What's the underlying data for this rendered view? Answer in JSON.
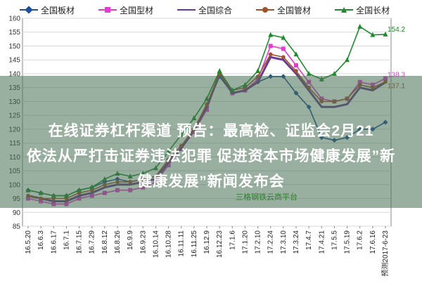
{
  "legend": [
    {
      "name": "全国板材",
      "color": "#1f4e9a",
      "marker": "diamond"
    },
    {
      "name": "全国型材",
      "color": "#e43cd0",
      "marker": "square"
    },
    {
      "name": "全国综合",
      "color": "#6a3b8f",
      "marker": "none"
    },
    {
      "name": "全国管材",
      "color": "#a0522d",
      "marker": "circle"
    },
    {
      "name": "全国长材",
      "color": "#1e8c2c",
      "marker": "triangle"
    }
  ],
  "chart_data": {
    "type": "line",
    "x": [
      "16.5.20",
      "16.6.3",
      "16.6.17",
      "16.7.1",
      "16.7.15",
      "16.7.29",
      "16.8.12",
      "16.8.26",
      "16.9.9",
      "16.9.23",
      "16.10.14",
      "16.10.28",
      "16.11.11",
      "16.11.25",
      "16.12.9",
      "16.12.23",
      "17.1.6",
      "17.1.20",
      "17.2.10",
      "17.2.24",
      "17.3.10",
      "17.3.24",
      "17.4.7",
      "17.4.21",
      "17.5.5",
      "17.5.19",
      "17.6.2",
      "17.6.16",
      "预测2017-6-23"
    ],
    "ylim": [
      85,
      160
    ],
    "yticks": [
      85,
      90,
      95,
      100,
      105,
      110,
      115,
      120,
      125,
      130,
      135,
      140,
      145,
      150,
      155,
      160
    ],
    "grid": true,
    "series": [
      {
        "name": "全国板材",
        "values": [
          98,
          97,
          96,
          96,
          98,
          99,
          101,
          102,
          101,
          102,
          103,
          109,
          113,
          120,
          128,
          139,
          133,
          134,
          137,
          139,
          139,
          133,
          128,
          117,
          116,
          117,
          120,
          120,
          122.5
        ]
      },
      {
        "name": "全国型材",
        "values": [
          95,
          94,
          93,
          93,
          95,
          96,
          97,
          98,
          98,
          99,
          101,
          107,
          113,
          119,
          127,
          140,
          133,
          134,
          138,
          150,
          149,
          143,
          137,
          131,
          130,
          131,
          137,
          136,
          138.3
        ]
      },
      {
        "name": "全国综合",
        "values": [
          96,
          95,
          94,
          94,
          96,
          97,
          99,
          100,
          100,
          101,
          102,
          108,
          113,
          120,
          128,
          140,
          133,
          134,
          137,
          146,
          145,
          140,
          134,
          128,
          128,
          129,
          135,
          134,
          136.9
        ]
      },
      {
        "name": "全国管材",
        "values": [
          96,
          95,
          95,
          95,
          97,
          98,
          100,
          101,
          101,
          102,
          103,
          109,
          114,
          120,
          129,
          140,
          134,
          135,
          139,
          147,
          146,
          141,
          135,
          130,
          130,
          131,
          136,
          135,
          137.1
        ]
      },
      {
        "name": "全国长材",
        "values": [
          98,
          97,
          96,
          96,
          98,
          99,
          102,
          104,
          103,
          104,
          106,
          112,
          118,
          124,
          131,
          141,
          134,
          136,
          141,
          154,
          153,
          147,
          140,
          138,
          140,
          145,
          157,
          154,
          154.2
        ]
      }
    ],
    "data_labels": [
      "154.2",
      "138.3",
      "137.1"
    ]
  },
  "overlay": {
    "line1": "在线证券杠杆渠道 预告：最高检、证监会2月21",
    "line2": "依法从严打击证券违法犯罪 促进资本市场健康发展”新",
    "line3": "健康发展”新闻发布会"
  },
  "watermark": "三格钢铁云商平台"
}
